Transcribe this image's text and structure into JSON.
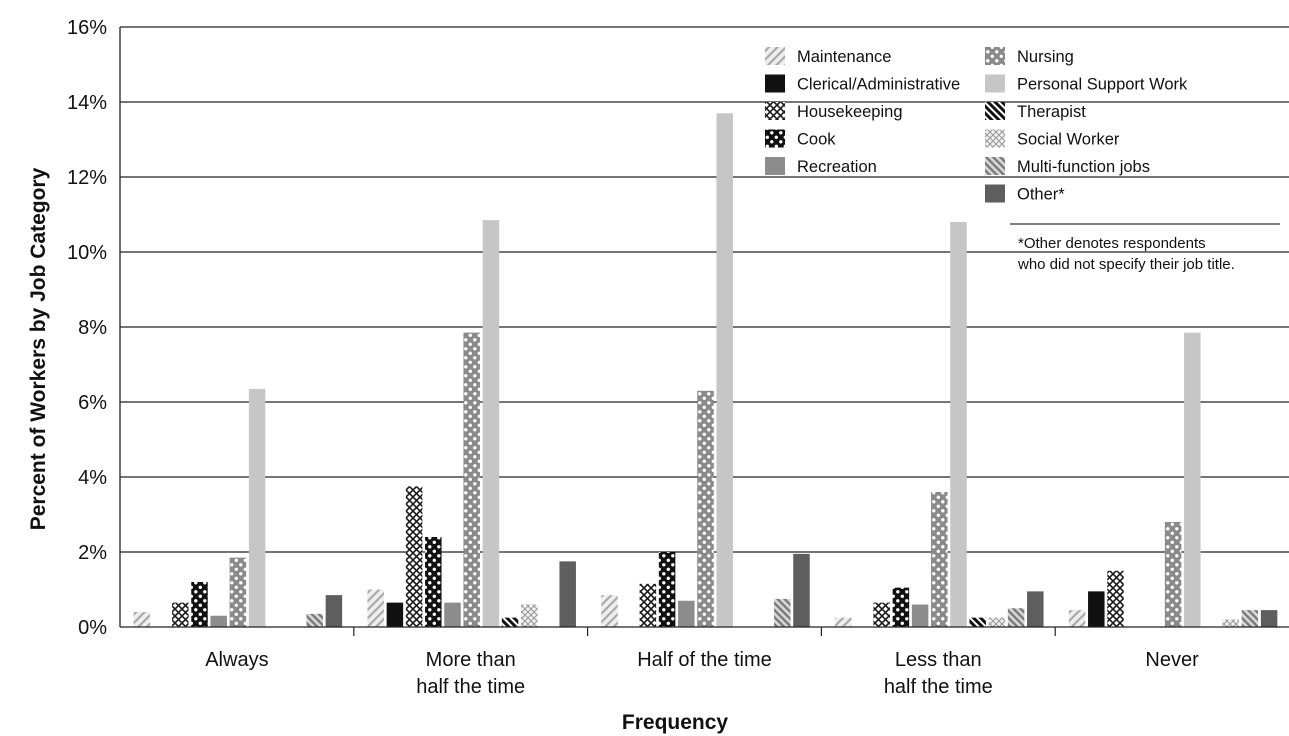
{
  "chart_data": {
    "type": "bar",
    "xlabel": "Frequency",
    "ylabel": "Percent of Workers by Job Category",
    "ylim": [
      0,
      16
    ],
    "yticks": [
      "0%",
      "2%",
      "4%",
      "6%",
      "8%",
      "10%",
      "12%",
      "14%",
      "16%"
    ],
    "categories": [
      [
        "Always"
      ],
      [
        "More than",
        "half the time"
      ],
      [
        "Half of the time"
      ],
      [
        "Less than",
        "half the time"
      ],
      [
        "Never"
      ]
    ],
    "grid": "horizontal",
    "legend_position": "top-right",
    "series": [
      {
        "name": "Maintenance",
        "pattern": "diag-light",
        "values": [
          0.4,
          1.0,
          0.85,
          0.25,
          0.45
        ]
      },
      {
        "name": "Clerical/Administrative",
        "pattern": "black",
        "values": [
          0,
          0.65,
          0,
          0,
          0.95
        ]
      },
      {
        "name": "Housekeeping",
        "pattern": "crosshatch",
        "values": [
          0.65,
          3.75,
          1.15,
          0.65,
          1.5
        ]
      },
      {
        "name": "Cook",
        "pattern": "black-dots",
        "values": [
          1.2,
          2.4,
          2.0,
          1.05,
          0
        ]
      },
      {
        "name": "Recreation",
        "pattern": "mid-gray",
        "values": [
          0.3,
          0.65,
          0.7,
          0.6,
          0
        ]
      },
      {
        "name": "Nursing",
        "pattern": "gray-dots",
        "values": [
          1.85,
          7.85,
          6.3,
          3.6,
          2.8
        ]
      },
      {
        "name": "Personal Support Work",
        "pattern": "light-gray",
        "values": [
          6.35,
          10.85,
          13.7,
          10.8,
          7.85
        ]
      },
      {
        "name": "Therapist",
        "pattern": "diag-dark",
        "values": [
          0,
          0.25,
          0,
          0.25,
          0
        ]
      },
      {
        "name": "Social Worker",
        "pattern": "light-cross",
        "values": [
          0,
          0.6,
          0,
          0.25,
          0.2
        ]
      },
      {
        "name": "Multi-function jobs",
        "pattern": "diag-gray",
        "values": [
          0.35,
          0,
          0.75,
          0.5,
          0.45
        ]
      },
      {
        "name": "Other*",
        "pattern": "dark-gray",
        "values": [
          0.85,
          1.75,
          1.95,
          0.95,
          0.45
        ]
      }
    ],
    "note": [
      "*Other denotes respondents",
      "who did not specify their job title."
    ]
  }
}
